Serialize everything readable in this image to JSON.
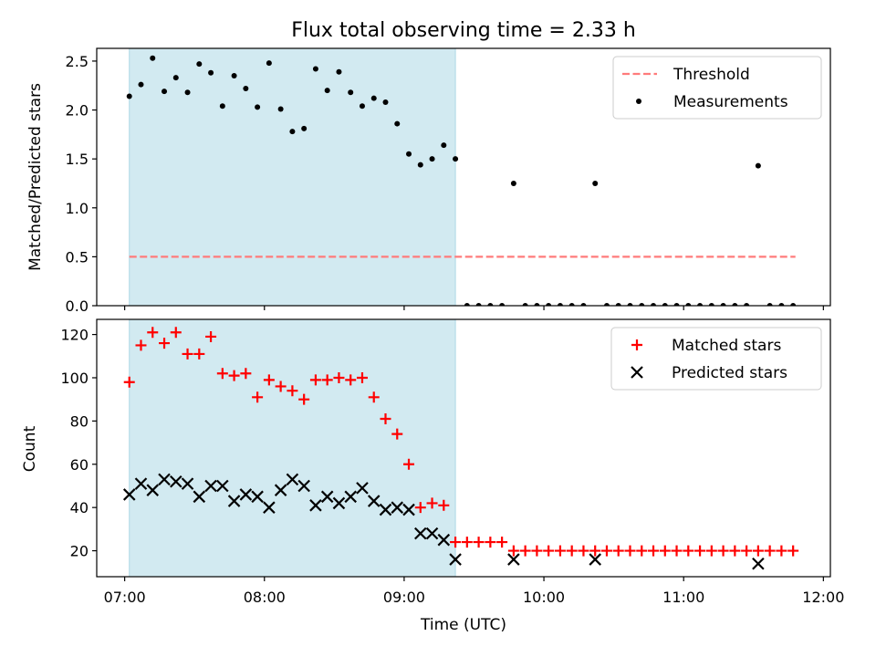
{
  "chart_data": [
    {
      "type": "scatter",
      "title": "Flux total observing time = 2.33 h",
      "xlabel": "",
      "ylabel": "Matched/Predicted stars",
      "ylim": [
        0,
        2.63
      ],
      "xlim": [
        "06:48",
        "12:03"
      ],
      "yticks": [
        "0.0",
        "0.5",
        "1.0",
        "1.5",
        "2.0",
        "2.5"
      ],
      "shaded_interval": [
        "07:02",
        "09:22"
      ],
      "shaded_color": "#add8e6",
      "legend_position": "top-right",
      "threshold": {
        "name": "Threshold",
        "value": 0.5,
        "x_range": [
          "07:02",
          "11:48"
        ],
        "color": "#ff7b7b",
        "style": "dashed"
      },
      "series": [
        {
          "name": "Measurements",
          "marker": "dot",
          "color": "#000000",
          "points": [
            [
              "07:02",
              2.14
            ],
            [
              "07:07",
              2.26
            ],
            [
              "07:12",
              2.53
            ],
            [
              "07:17",
              2.19
            ],
            [
              "07:22",
              2.33
            ],
            [
              "07:27",
              2.18
            ],
            [
              "07:32",
              2.47
            ],
            [
              "07:37",
              2.38
            ],
            [
              "07:42",
              2.04
            ],
            [
              "07:47",
              2.35
            ],
            [
              "07:52",
              2.22
            ],
            [
              "07:57",
              2.03
            ],
            [
              "08:02",
              2.48
            ],
            [
              "08:07",
              2.01
            ],
            [
              "08:12",
              1.78
            ],
            [
              "08:17",
              1.81
            ],
            [
              "08:22",
              2.42
            ],
            [
              "08:27",
              2.2
            ],
            [
              "08:32",
              2.39
            ],
            [
              "08:37",
              2.18
            ],
            [
              "08:42",
              2.04
            ],
            [
              "08:47",
              2.12
            ],
            [
              "08:52",
              2.08
            ],
            [
              "08:57",
              1.86
            ],
            [
              "09:02",
              1.55
            ],
            [
              "09:07",
              1.44
            ],
            [
              "09:12",
              1.5
            ],
            [
              "09:17",
              1.64
            ],
            [
              "09:22",
              1.5
            ],
            [
              "09:27",
              0
            ],
            [
              "09:32",
              0
            ],
            [
              "09:37",
              0
            ],
            [
              "09:42",
              0
            ],
            [
              "09:47",
              1.25
            ],
            [
              "09:52",
              0
            ],
            [
              "09:57",
              0
            ],
            [
              "10:02",
              0
            ],
            [
              "10:07",
              0
            ],
            [
              "10:12",
              0
            ],
            [
              "10:17",
              0
            ],
            [
              "10:22",
              1.25
            ],
            [
              "10:27",
              0
            ],
            [
              "10:32",
              0
            ],
            [
              "10:37",
              0
            ],
            [
              "10:42",
              0
            ],
            [
              "10:47",
              0
            ],
            [
              "10:52",
              0
            ],
            [
              "10:57",
              0
            ],
            [
              "11:02",
              0
            ],
            [
              "11:07",
              0
            ],
            [
              "11:12",
              0
            ],
            [
              "11:17",
              0
            ],
            [
              "11:22",
              0
            ],
            [
              "11:27",
              0
            ],
            [
              "11:32",
              1.43
            ],
            [
              "11:37",
              0
            ],
            [
              "11:42",
              0
            ],
            [
              "11:47",
              0
            ]
          ]
        }
      ]
    },
    {
      "type": "scatter",
      "title": "",
      "xlabel": "Time (UTC)",
      "ylabel": "Count",
      "ylim": [
        8,
        127
      ],
      "xlim": [
        "06:48",
        "12:03"
      ],
      "xticks": [
        "07:00",
        "08:00",
        "09:00",
        "10:00",
        "11:00",
        "12:00"
      ],
      "yticks": [
        "20",
        "40",
        "60",
        "80",
        "100",
        "120"
      ],
      "shaded_interval": [
        "07:02",
        "09:22"
      ],
      "shaded_color": "#add8e6",
      "legend_position": "top-right",
      "series": [
        {
          "name": "Matched stars",
          "marker": "plus",
          "color": "#ff0000",
          "points": [
            [
              "07:02",
              98
            ],
            [
              "07:07",
              115
            ],
            [
              "07:12",
              121
            ],
            [
              "07:17",
              116
            ],
            [
              "07:22",
              121
            ],
            [
              "07:27",
              111
            ],
            [
              "07:32",
              111
            ],
            [
              "07:37",
              119
            ],
            [
              "07:42",
              102
            ],
            [
              "07:47",
              101
            ],
            [
              "07:52",
              102
            ],
            [
              "07:57",
              91
            ],
            [
              "08:02",
              99
            ],
            [
              "08:07",
              96
            ],
            [
              "08:12",
              94
            ],
            [
              "08:17",
              90
            ],
            [
              "08:22",
              99
            ],
            [
              "08:27",
              99
            ],
            [
              "08:32",
              100
            ],
            [
              "08:37",
              99
            ],
            [
              "08:42",
              100
            ],
            [
              "08:47",
              91
            ],
            [
              "08:52",
              81
            ],
            [
              "08:57",
              74
            ],
            [
              "09:02",
              60
            ],
            [
              "09:07",
              40
            ],
            [
              "09:12",
              42
            ],
            [
              "09:17",
              41
            ],
            [
              "09:22",
              24
            ],
            [
              "09:27",
              24
            ],
            [
              "09:32",
              24
            ],
            [
              "09:37",
              24
            ],
            [
              "09:42",
              24
            ],
            [
              "09:47",
              20
            ],
            [
              "09:52",
              20
            ],
            [
              "09:57",
              20
            ],
            [
              "10:02",
              20
            ],
            [
              "10:07",
              20
            ],
            [
              "10:12",
              20
            ],
            [
              "10:17",
              20
            ],
            [
              "10:22",
              20
            ],
            [
              "10:27",
              20
            ],
            [
              "10:32",
              20
            ],
            [
              "10:37",
              20
            ],
            [
              "10:42",
              20
            ],
            [
              "10:47",
              20
            ],
            [
              "10:52",
              20
            ],
            [
              "10:57",
              20
            ],
            [
              "11:02",
              20
            ],
            [
              "11:07",
              20
            ],
            [
              "11:12",
              20
            ],
            [
              "11:17",
              20
            ],
            [
              "11:22",
              20
            ],
            [
              "11:27",
              20
            ],
            [
              "11:32",
              20
            ],
            [
              "11:37",
              20
            ],
            [
              "11:42",
              20
            ],
            [
              "11:47",
              20
            ]
          ]
        },
        {
          "name": "Predicted stars",
          "marker": "x",
          "color": "#000000",
          "points": [
            [
              "07:02",
              46
            ],
            [
              "07:07",
              51
            ],
            [
              "07:12",
              48
            ],
            [
              "07:17",
              53
            ],
            [
              "07:22",
              52
            ],
            [
              "07:27",
              51
            ],
            [
              "07:32",
              45
            ],
            [
              "07:37",
              50
            ],
            [
              "07:42",
              50
            ],
            [
              "07:47",
              43
            ],
            [
              "07:52",
              46
            ],
            [
              "07:57",
              45
            ],
            [
              "08:02",
              40
            ],
            [
              "08:07",
              48
            ],
            [
              "08:12",
              53
            ],
            [
              "08:17",
              50
            ],
            [
              "08:22",
              41
            ],
            [
              "08:27",
              45
            ],
            [
              "08:32",
              42
            ],
            [
              "08:37",
              45
            ],
            [
              "08:42",
              49
            ],
            [
              "08:47",
              43
            ],
            [
              "08:52",
              39
            ],
            [
              "08:57",
              40
            ],
            [
              "09:02",
              39
            ],
            [
              "09:07",
              28
            ],
            [
              "09:12",
              28
            ],
            [
              "09:17",
              25
            ],
            [
              "09:22",
              16
            ],
            [
              "09:47",
              16
            ],
            [
              "10:22",
              16
            ],
            [
              "11:32",
              14
            ]
          ]
        }
      ]
    }
  ]
}
